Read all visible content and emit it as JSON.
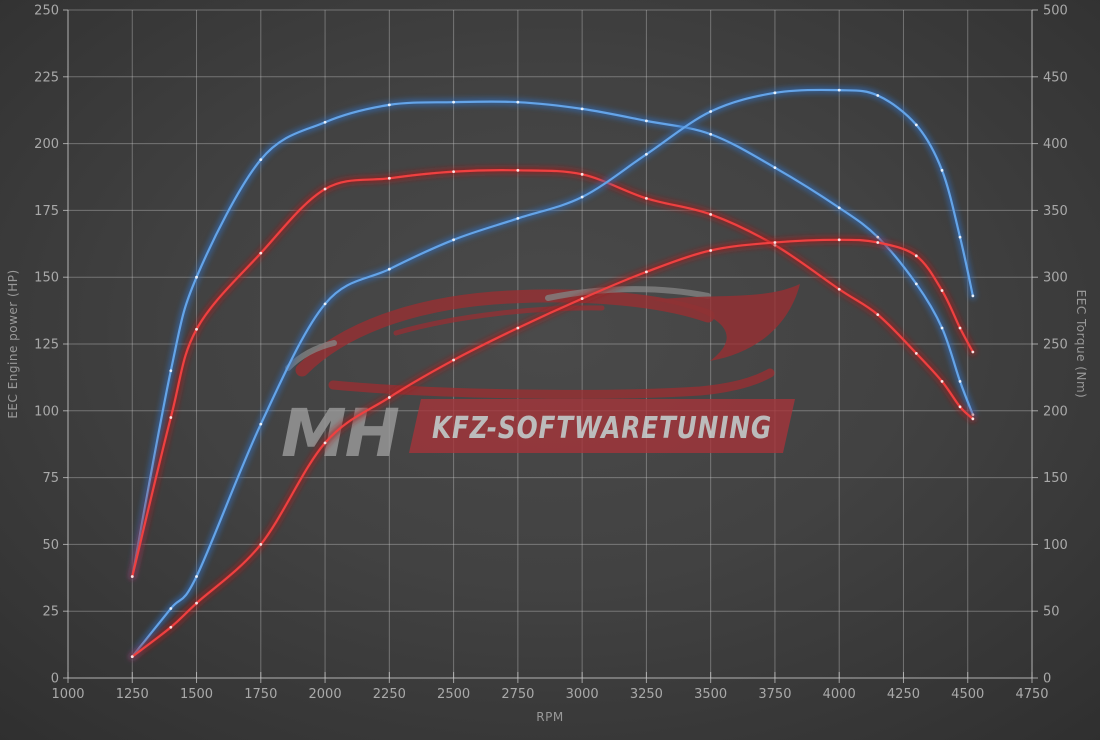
{
  "colors": {
    "background_center": "#4a4a4a",
    "background_edge": "#2b2b2b",
    "grid": "#c8c8c8",
    "axis_line": "#c8c8c8",
    "tick_label": "#a9a9a9",
    "axis_title": "#999999",
    "curve_blue": "#64a4e8",
    "curve_blue_glow": "#2f6db8",
    "curve_red": "#ef4040",
    "curve_red_glow": "#a81d1d",
    "watermark_red": "#a8343a",
    "watermark_gray": "#9a9a9a"
  },
  "watermark": {
    "mh_text": "MH",
    "box_text": "KFZ-SOFTWARETUNING"
  },
  "chart_data": {
    "type": "line",
    "title": "",
    "xlabel": "RPM",
    "ylabel_left": "EEC Engine power (HP)",
    "ylabel_right": "EEC Torque (Nm)",
    "xlim": [
      1000,
      4750
    ],
    "ylim_left": [
      0,
      250
    ],
    "ylim_right": [
      0,
      500
    ],
    "x_ticks": [
      1000,
      1250,
      1500,
      1750,
      2000,
      2250,
      2500,
      2750,
      3000,
      3250,
      3500,
      3750,
      4000,
      4250,
      4500,
      4750
    ],
    "left_ticks": [
      0,
      25,
      50,
      75,
      100,
      125,
      150,
      175,
      200,
      225,
      250
    ],
    "right_ticks": [
      0,
      50,
      100,
      150,
      200,
      250,
      300,
      350,
      400,
      450,
      500
    ],
    "grid": true,
    "legend": "none",
    "x": [
      1250,
      1400,
      1500,
      1750,
      2000,
      2250,
      2500,
      2750,
      3000,
      3250,
      3500,
      3750,
      4000,
      4150,
      4300,
      4400,
      4470,
      4520
    ],
    "series": [
      {
        "name": "torque-curve-blue",
        "axis": "right",
        "unit": "Nm",
        "color": "#64a4e8",
        "glow": "#2f6db8",
        "peak": 431,
        "values": [
          76,
          230,
          300,
          388,
          416,
          429,
          431,
          431,
          426,
          417,
          407,
          382,
          352,
          330,
          295,
          262,
          222,
          197
        ]
      },
      {
        "name": "torque-curve-red",
        "axis": "right",
        "unit": "Nm",
        "color": "#ef4040",
        "glow": "#a81d1d",
        "peak": 380,
        "values": [
          76,
          195,
          261,
          318,
          366,
          374,
          379,
          380,
          377,
          359,
          347,
          324,
          291,
          272,
          243,
          222,
          203,
          194
        ]
      },
      {
        "name": "power-curve-blue",
        "axis": "left",
        "unit": "HP",
        "color": "#64a4e8",
        "glow": "#2f6db8",
        "peak": 220,
        "values": [
          8,
          26,
          38,
          95,
          140,
          153,
          164,
          172,
          180,
          196,
          212,
          219,
          220,
          218,
          207,
          190,
          165,
          143
        ]
      },
      {
        "name": "power-curve-red",
        "axis": "left",
        "unit": "HP",
        "color": "#ef4040",
        "glow": "#a81d1d",
        "peak": 164,
        "values": [
          8,
          19,
          28,
          50,
          88,
          105,
          119,
          131,
          142,
          152,
          160,
          163,
          164,
          163,
          158,
          145,
          131,
          122
        ]
      }
    ]
  }
}
